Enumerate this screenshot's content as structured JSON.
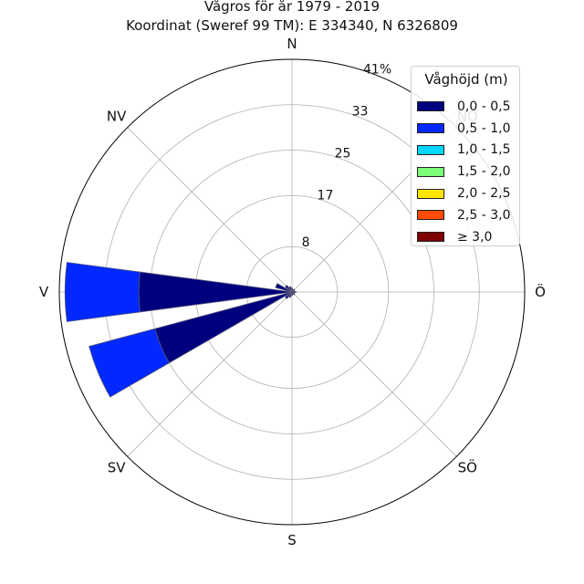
{
  "title_line1": "Vågros för år 1979 - 2019",
  "title_line2": "Koordinat (Sweref 99 TM): E 334340, N 6326809",
  "chart_data": {
    "type": "polar-stacked-bar",
    "directions": [
      "N",
      "NO",
      "Ö",
      "SÖ",
      "S",
      "SV",
      "V",
      "NV"
    ],
    "direction_labels_shown": [
      "N",
      "Ö",
      "SÖ",
      "S",
      "SV",
      "V",
      "NV"
    ],
    "radial_ticks": [
      "8",
      "17",
      "25",
      "33",
      "41%"
    ],
    "radial_tick_values": [
      8,
      17,
      25,
      33,
      41
    ],
    "rmax": 41,
    "legend_title": "Våghöjd (m)",
    "bins": [
      "0,0 - 0,5",
      "0,5 - 1,0",
      "1,0 - 1,5",
      "1,5 - 2,0",
      "2,0 - 2,5",
      "2,5 - 3,0",
      "≥ 3,0"
    ],
    "bin_colors": [
      "#00007f",
      "#0028ff",
      "#00d5ff",
      "#7cff79",
      "#ffe500",
      "#ff4a00",
      "#7f0000"
    ],
    "bar_colors": [
      "#00007f",
      "#0028ff"
    ],
    "bar_width_deg": 15,
    "sectors": [
      {
        "direction_deg": 270,
        "values": [
          27,
          13
        ]
      },
      {
        "direction_deg": 247.5,
        "values": [
          25,
          12
        ]
      },
      {
        "direction_deg": 292.5,
        "values": [
          3,
          0
        ]
      },
      {
        "direction_deg": 315,
        "values": [
          1.5,
          0
        ]
      },
      {
        "direction_deg": 337.5,
        "values": [
          1,
          0
        ]
      },
      {
        "direction_deg": 0,
        "values": [
          0.7,
          0
        ]
      },
      {
        "direction_deg": 22.5,
        "values": [
          0.5,
          0
        ]
      },
      {
        "direction_deg": 45,
        "values": [
          0.6,
          0
        ]
      },
      {
        "direction_deg": 67.5,
        "values": [
          0.5,
          0
        ]
      },
      {
        "direction_deg": 90,
        "values": [
          0.7,
          0
        ]
      },
      {
        "direction_deg": 112.5,
        "values": [
          0.5,
          0
        ]
      },
      {
        "direction_deg": 135,
        "values": [
          0.6,
          0
        ]
      },
      {
        "direction_deg": 157.5,
        "values": [
          0.5,
          0
        ]
      },
      {
        "direction_deg": 180,
        "values": [
          0.6,
          0
        ]
      },
      {
        "direction_deg": 202.5,
        "values": [
          1,
          0
        ]
      },
      {
        "direction_deg": 225,
        "values": [
          1.5,
          0
        ]
      }
    ]
  }
}
